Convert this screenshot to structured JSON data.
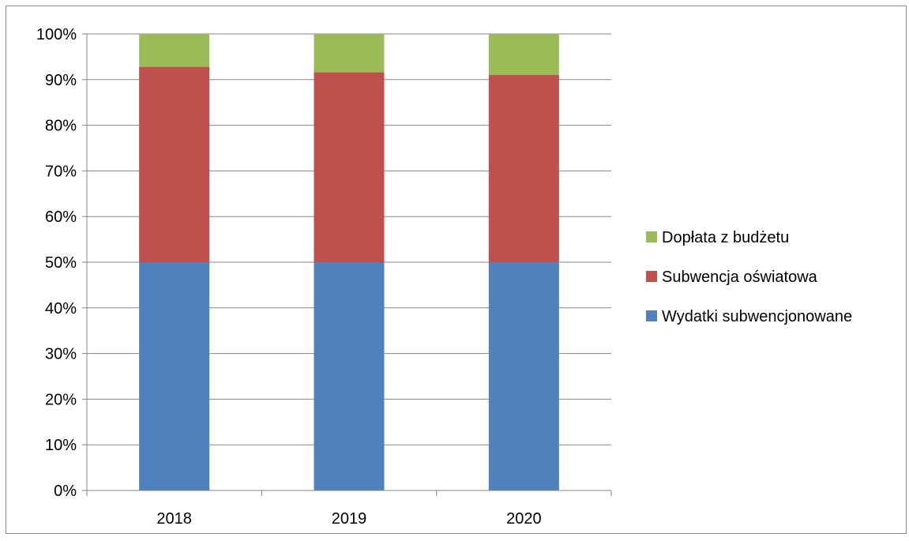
{
  "chart_data": {
    "type": "bar",
    "stacked": true,
    "percent_stacked": true,
    "categories": [
      "2018",
      "2019",
      "2020"
    ],
    "series": [
      {
        "name": "Wydatki subwencjonowane",
        "color": "#4f81bd",
        "values": [
          50.0,
          50.0,
          50.0
        ]
      },
      {
        "name": "Subwencja oświatowa",
        "color": "#c0504d",
        "values": [
          42.8,
          41.6,
          41.0
        ]
      },
      {
        "name": "Dopłata z budżetu",
        "color": "#9bbb59",
        "values": [
          7.2,
          8.4,
          9.0
        ]
      }
    ],
    "y_ticks": [
      "0%",
      "10%",
      "20%",
      "30%",
      "40%",
      "50%",
      "60%",
      "70%",
      "80%",
      "90%",
      "100%"
    ],
    "ylim": [
      0,
      100
    ],
    "grid": true,
    "legend_position": "right",
    "legend_order": [
      "Dopłata z budżetu",
      "Subwencja oświatowa",
      "Wydatki subwencjonowane"
    ]
  }
}
